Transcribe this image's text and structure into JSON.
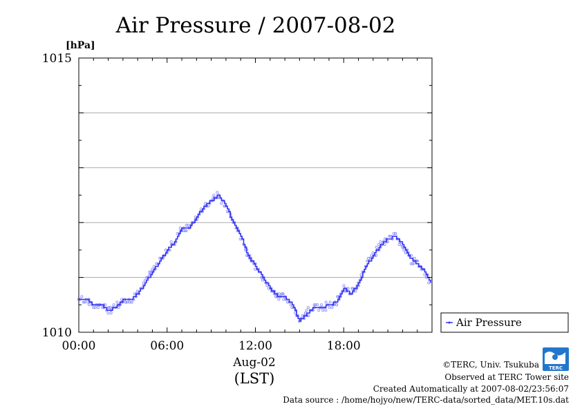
{
  "page": {
    "title": "Air Pressure / 2007-08-02",
    "footer": {
      "copyright": "©TERC, Univ. Tsukuba",
      "observed": "Observed at TERC Tower site",
      "created": "Created Automatically at 2007-08-02/23:56:07",
      "source": "Data source : /home/hojyo/new/TERC-data/sorted_data/MET.10s.dat"
    },
    "logo_text": "TERC",
    "colors": {
      "series": "#3333ee",
      "dots": "#8888ff",
      "grid": "#aaaaaa"
    }
  },
  "chart_data": {
    "type": "line",
    "title": "Air Pressure / 2007-08-02",
    "ylabel": "[hPa]",
    "xlabel": "Aug-02",
    "xlabel2": "(LST)",
    "ylim": [
      1010,
      1015
    ],
    "xlim": [
      0,
      24
    ],
    "yticks": [
      1010,
      1015
    ],
    "ytick_labels": [
      "1010",
      "1015"
    ],
    "ygrid": [
      1011,
      1012,
      1013,
      1014
    ],
    "xticks": [
      0,
      6,
      12,
      18
    ],
    "xtick_labels": [
      "00:00",
      "06:00",
      "12:00",
      "18:00"
    ],
    "grid": true,
    "legend": "right",
    "series": [
      {
        "name": "Air Pressure",
        "x": [
          0,
          0.5,
          1,
          1.5,
          2,
          2.5,
          3,
          3.5,
          4,
          4.5,
          5,
          5.5,
          6,
          6.5,
          7,
          7.5,
          8,
          8.5,
          9,
          9.5,
          10,
          10.5,
          11,
          11.5,
          12,
          12.5,
          13,
          13.5,
          14,
          14.5,
          15,
          15.5,
          16,
          16.5,
          17,
          17.5,
          18,
          18.5,
          19,
          19.5,
          20,
          20.5,
          21,
          21.5,
          22,
          22.5,
          23,
          23.5,
          23.9
        ],
        "values": [
          1010.6,
          1010.6,
          1010.5,
          1010.5,
          1010.4,
          1010.45,
          1010.6,
          1010.6,
          1010.7,
          1010.9,
          1011.1,
          1011.3,
          1011.5,
          1011.65,
          1011.9,
          1011.9,
          1012.1,
          1012.3,
          1012.4,
          1012.5,
          1012.3,
          1012.0,
          1011.75,
          1011.4,
          1011.2,
          1011.0,
          1010.8,
          1010.65,
          1010.65,
          1010.5,
          1010.2,
          1010.35,
          1010.45,
          1010.45,
          1010.5,
          1010.55,
          1010.8,
          1010.7,
          1010.9,
          1011.2,
          1011.4,
          1011.6,
          1011.7,
          1011.75,
          1011.6,
          1011.35,
          1011.25,
          1011.1,
          1010.9
        ]
      }
    ]
  }
}
